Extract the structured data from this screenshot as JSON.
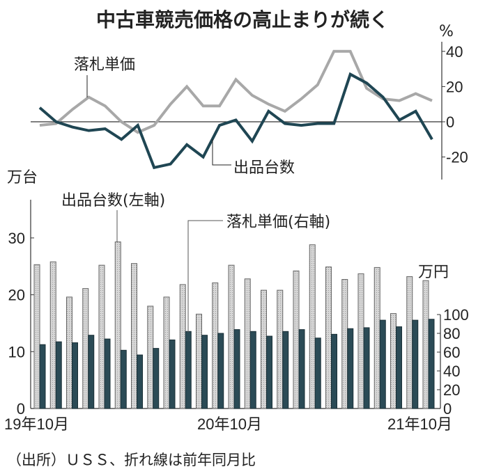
{
  "title": "中古車競売価格の高止まりが続く",
  "source_note": "（出所）ＵＳＳ、折れ線は前年同月比",
  "x_tick_labels": [
    "19年10月",
    "20年10月",
    "21年10月"
  ],
  "colors": {
    "count": "#1f4653",
    "price": "#a8a8a8",
    "count_bar": "#2b4b56",
    "price_bar": "#cfcfcf"
  },
  "chart_data": [
    {
      "type": "line",
      "unit_label": "%",
      "ylim": [
        -30,
        45
      ],
      "yticks": [
        40,
        20,
        0,
        -20
      ],
      "x": [
        "2019-10",
        "2019-11",
        "2019-12",
        "2020-01",
        "2020-02",
        "2020-03",
        "2020-04",
        "2020-05",
        "2020-06",
        "2020-07",
        "2020-08",
        "2020-09",
        "2020-10",
        "2020-11",
        "2020-12",
        "2021-01",
        "2021-02",
        "2021-03",
        "2021-04",
        "2021-05",
        "2021-06",
        "2021-07",
        "2021-08",
        "2021-09",
        "2021-10"
      ],
      "series": [
        {
          "name": "落札単価",
          "values": [
            -2,
            -1,
            7,
            14,
            9,
            0,
            -6,
            -2,
            10,
            20,
            9,
            9,
            24,
            15,
            10,
            6,
            13,
            21,
            40,
            40,
            19,
            13,
            12,
            16,
            12
          ]
        },
        {
          "name": "出品台数",
          "values": [
            8,
            0,
            -3,
            -5,
            -4,
            -10,
            -2,
            -26,
            -24,
            -13,
            -20,
            -2,
            1,
            -11,
            6,
            -1,
            -2,
            -1,
            -1,
            27,
            22,
            14,
            1,
            6,
            -10
          ]
        }
      ]
    },
    {
      "type": "bar",
      "left_axis": {
        "unit_label": "万台",
        "ylim": [
          0,
          36
        ],
        "yticks": [
          0,
          10,
          20,
          30
        ]
      },
      "right_axis": {
        "unit_label": "万円",
        "ylim": [
          0,
          100
        ],
        "yticks": [
          0,
          20,
          40,
          60,
          80,
          100
        ]
      },
      "x": [
        "2019-10",
        "2019-11",
        "2019-12",
        "2020-01",
        "2020-02",
        "2020-03",
        "2020-04",
        "2020-05",
        "2020-06",
        "2020-07",
        "2020-08",
        "2020-09",
        "2020-10",
        "2020-11",
        "2020-12",
        "2021-01",
        "2021-02",
        "2021-03",
        "2021-04",
        "2021-05",
        "2021-06",
        "2021-07",
        "2021-08",
        "2021-09",
        "2021-10"
      ],
      "series": [
        {
          "name": "出品台数(左軸)",
          "axis": "left",
          "values": [
            25.3,
            25.8,
            19.6,
            21.1,
            25.2,
            29.3,
            25.5,
            18.0,
            19.6,
            21.8,
            16.6,
            22.1,
            25.2,
            22.8,
            20.8,
            20.8,
            24.2,
            28.8,
            24.9,
            22.7,
            23.7,
            24.8,
            16.7,
            23.2,
            22.5
          ]
        },
        {
          "name": "落札単価(右軸)",
          "axis": "right",
          "values": [
            68,
            71,
            70,
            78,
            74,
            62,
            57,
            64,
            73,
            82,
            78,
            80,
            84,
            82,
            77,
            82,
            84,
            75,
            79,
            85,
            86,
            94,
            87,
            94,
            95
          ]
        }
      ]
    }
  ]
}
